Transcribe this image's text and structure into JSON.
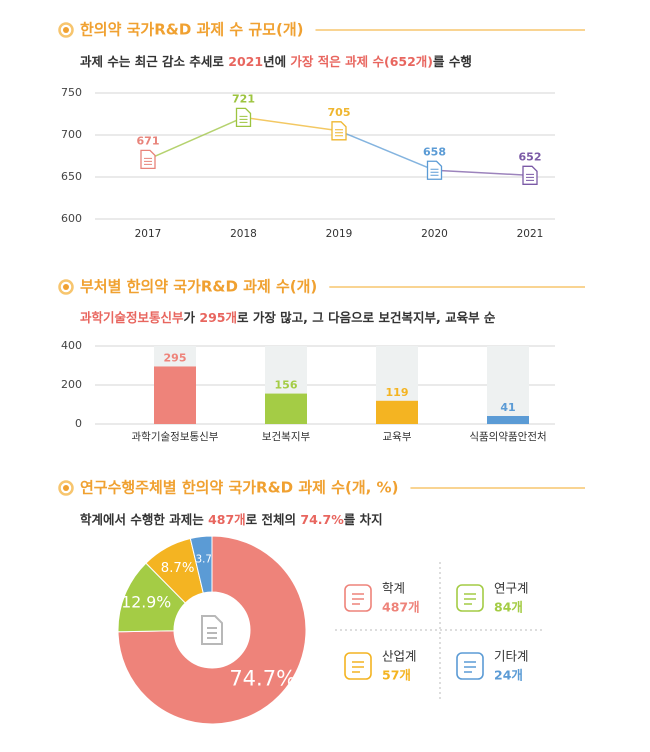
{
  "chart_data": [
    {
      "type": "line",
      "title": "한의약 국가R&D 과제 수 규모(개)",
      "subtitle": [
        {
          "text": "과제 수는 최근 감소 추세로 ",
          "color": "#333333"
        },
        {
          "text": "2021",
          "color": "#e8665f"
        },
        {
          "text": "년에 ",
          "color": "#333333"
        },
        {
          "text": "가장 적은 과제 수(652개)",
          "color": "#e8665f"
        },
        {
          "text": "를 수행",
          "color": "#333333"
        }
      ],
      "categories": [
        "2017",
        "2018",
        "2019",
        "2020",
        "2021"
      ],
      "values": [
        671,
        721,
        705,
        658,
        652
      ],
      "colors": [
        "#e8837a",
        "#9dc43f",
        "#efb62f",
        "#5b9bd5",
        "#7b5aa6"
      ],
      "ylim": [
        600,
        750
      ],
      "yticks": [
        600,
        650,
        700,
        750
      ],
      "grid": true
    },
    {
      "type": "bar",
      "title": "부처별 한의약 국가R&D 과제 수(개)",
      "subtitle": [
        {
          "text": "과학기술정보통신부",
          "color": "#e8665f"
        },
        {
          "text": "가 ",
          "color": "#333333"
        },
        {
          "text": "295개",
          "color": "#e8665f"
        },
        {
          "text": "로 가장 많고, 그 다음으로 보건복지부, 교육부 순",
          "color": "#333333"
        }
      ],
      "categories": [
        "과학기술정보통신부",
        "보건복지부",
        "교육부",
        "식품의약품안전처"
      ],
      "values": [
        295,
        156,
        119,
        41
      ],
      "colors": [
        "#ee837a",
        "#a4cc45",
        "#f4b422",
        "#5b9bd5"
      ],
      "ylim": [
        0,
        400
      ],
      "yticks": [
        0,
        200,
        400
      ],
      "grid": true
    },
    {
      "type": "donut",
      "title": "연구수행주체별 한의약 국가R&D 과제 수(개, %)",
      "subtitle": [
        {
          "text": "학계에서 수행한 과제는 ",
          "color": "#333333"
        },
        {
          "text": "487개",
          "color": "#e8665f"
        },
        {
          "text": "로 전체의 ",
          "color": "#333333"
        },
        {
          "text": "74.7%",
          "color": "#e8665f"
        },
        {
          "text": "를 차지",
          "color": "#333333"
        }
      ],
      "categories": [
        "학계",
        "연구계",
        "산업계",
        "기타계"
      ],
      "values": [
        74.7,
        12.9,
        8.7,
        3.7
      ],
      "value_labels": [
        "74.7%",
        "12.9%",
        "8.7%",
        "3.7"
      ],
      "counts": [
        487,
        84,
        57,
        24
      ],
      "count_labels": [
        "487개",
        "84개",
        "57개",
        "24개"
      ],
      "colors": [
        "#ee837a",
        "#a4cc45",
        "#f4b422",
        "#5b9bd5"
      ]
    }
  ]
}
